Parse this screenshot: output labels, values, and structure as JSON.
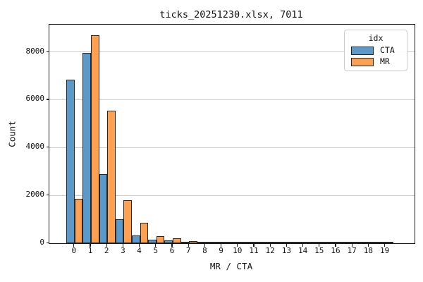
{
  "chart_data": {
    "type": "bar",
    "title": "ticks_20251230.xlsx, 7011",
    "xlabel": "MR / CTA",
    "ylabel": "Count",
    "categories": [
      "0",
      "1",
      "2",
      "3",
      "4",
      "5",
      "6",
      "7",
      "8",
      "9",
      "10",
      "11",
      "12",
      "13",
      "14",
      "15",
      "16",
      "17",
      "18",
      "19"
    ],
    "series": [
      {
        "name": "CTA",
        "color": "#5A99C9",
        "values": [
          6850,
          7950,
          2900,
          1000,
          330,
          150,
          130,
          40,
          30,
          20,
          20,
          25,
          20,
          10,
          20,
          15,
          10,
          8,
          5,
          3
        ]
      },
      {
        "name": "MR",
        "color": "#FDA052",
        "values": [
          1850,
          8700,
          5550,
          1800,
          850,
          300,
          215,
          100,
          70,
          30,
          60,
          35,
          30,
          15,
          35,
          10,
          30,
          12,
          8,
          6
        ]
      }
    ],
    "ylim": [
      0,
      9135
    ],
    "yticks": [
      0,
      2000,
      4000,
      6000,
      8000
    ],
    "grid": "horizontal-only",
    "gridline_color": "#cccccc",
    "bar_edge_color": "#262626",
    "legend": {
      "title": "idx",
      "position": "upper-right",
      "entries": [
        "CTA",
        "MR"
      ]
    }
  }
}
